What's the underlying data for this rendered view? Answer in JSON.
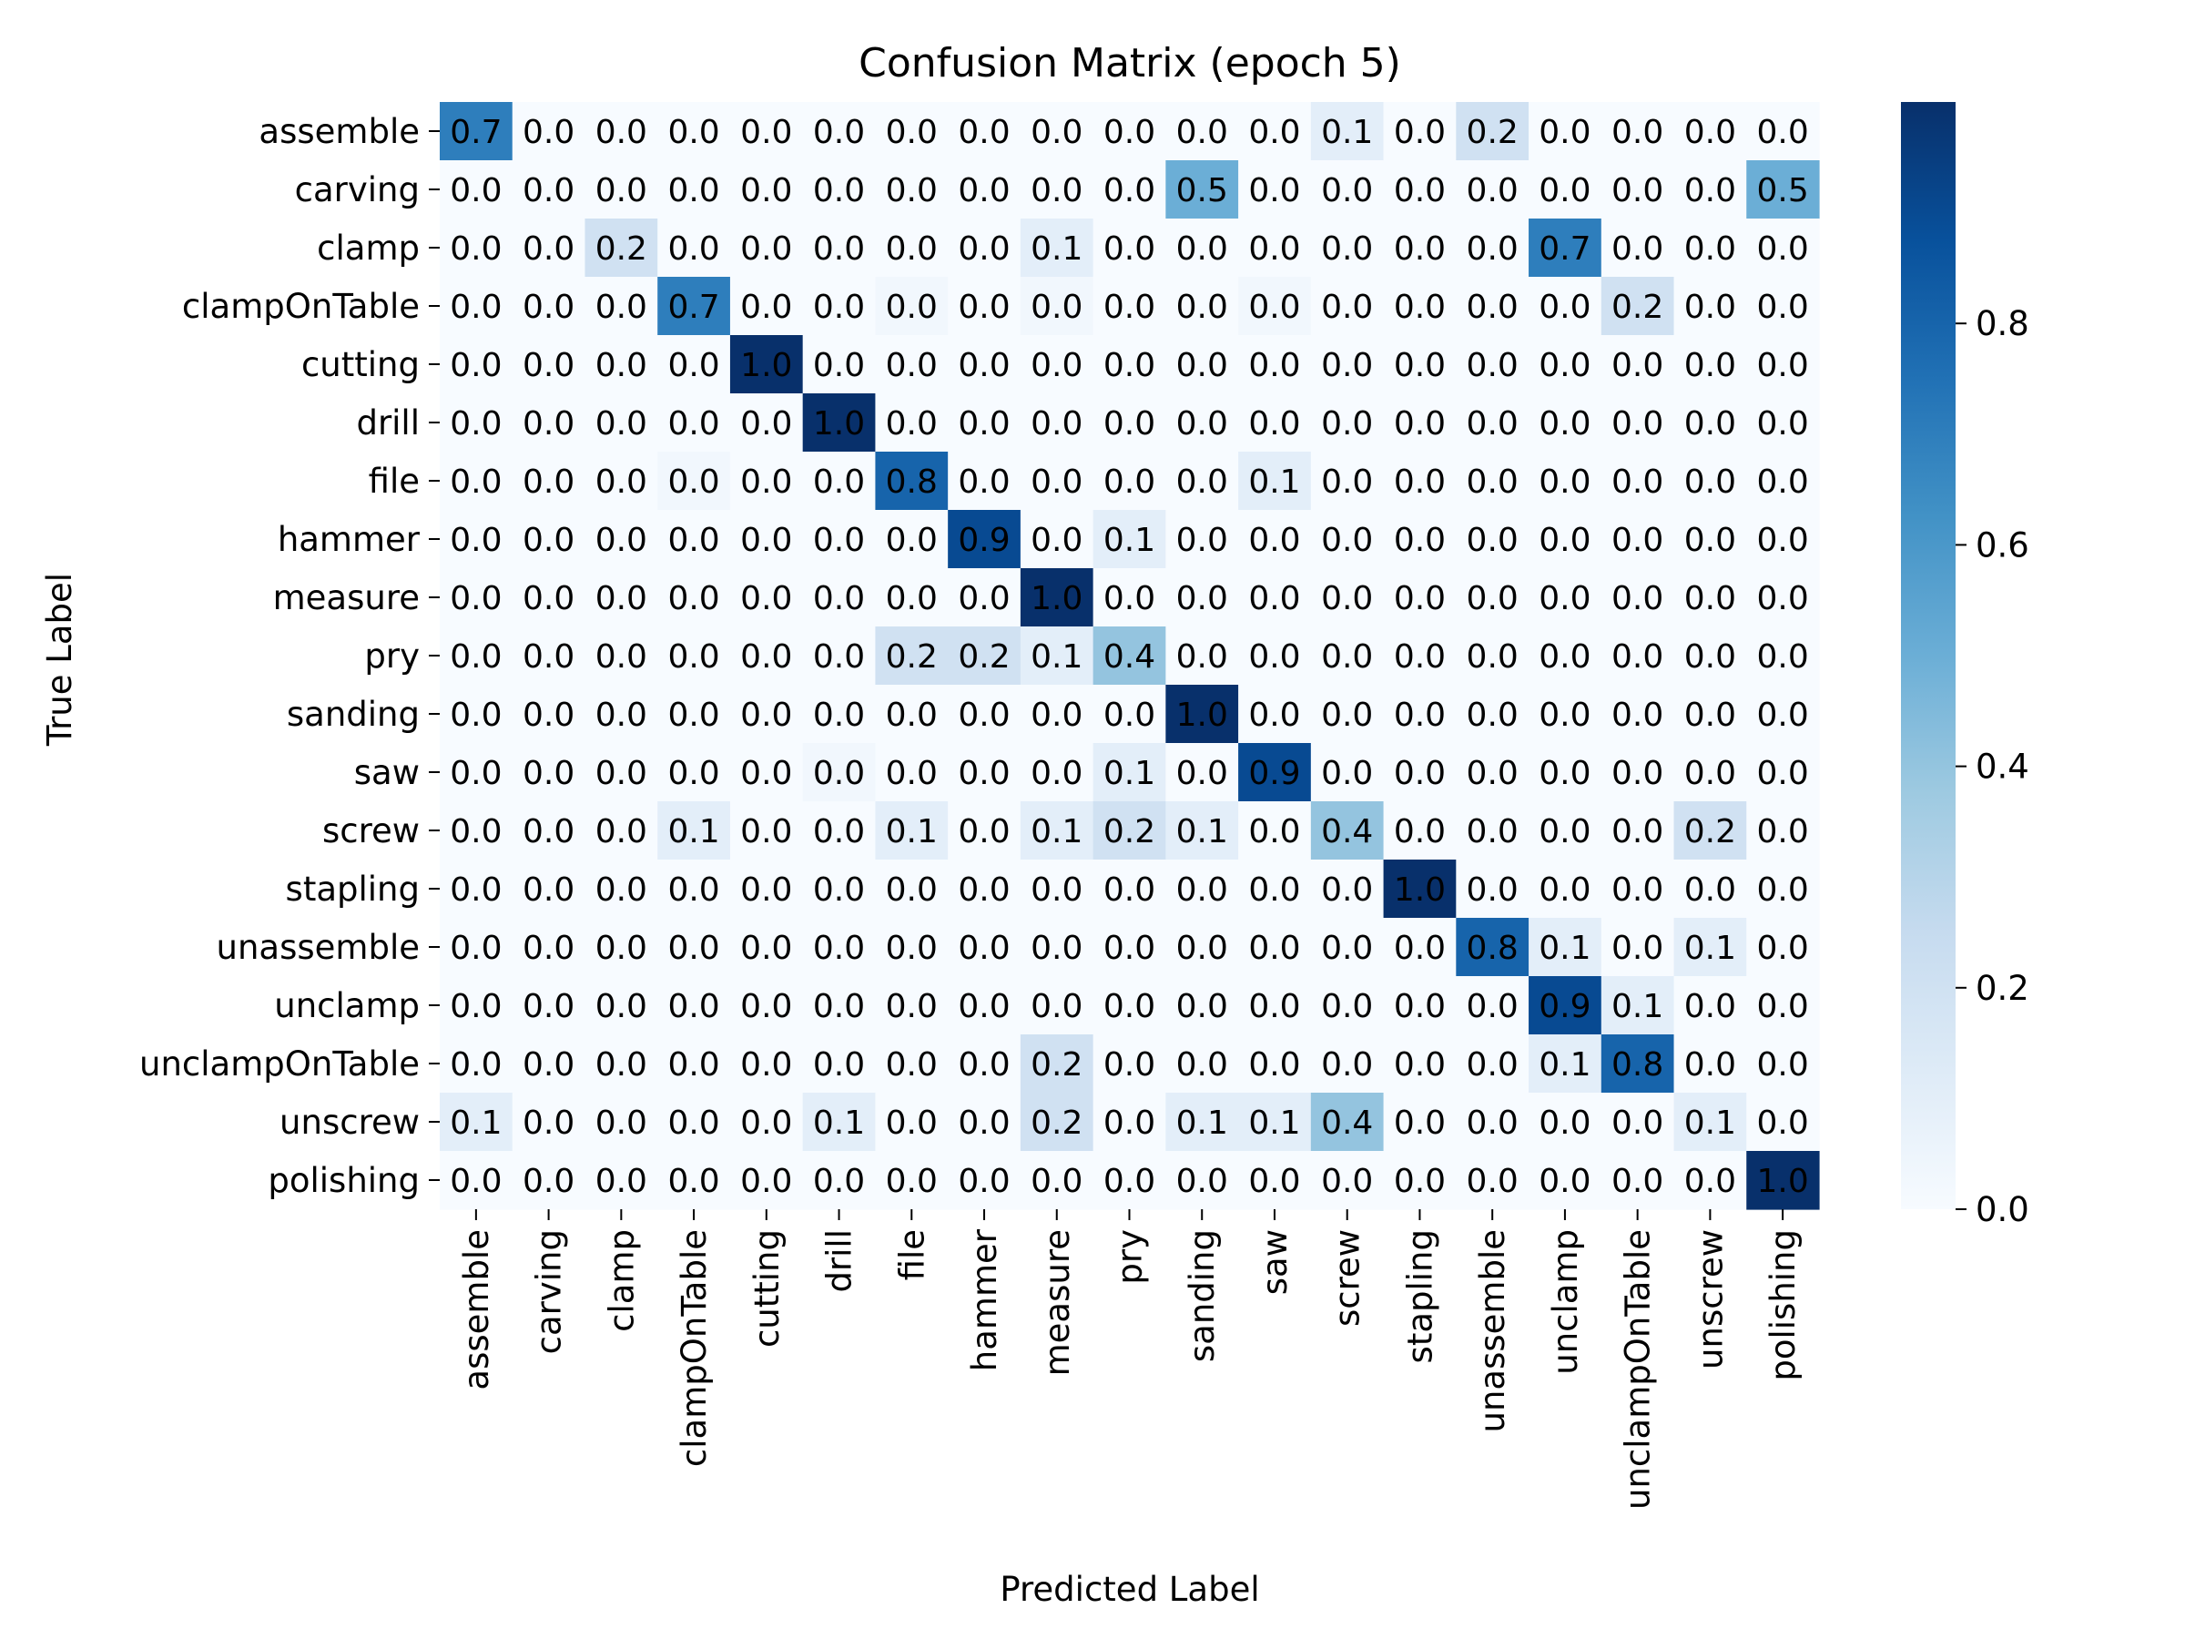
{
  "chart_data": {
    "type": "heatmap",
    "title": "Confusion Matrix (epoch 5)",
    "xlabel": "Predicted Label",
    "ylabel": "True Label",
    "x_categories": [
      "assemble",
      "carving",
      "clamp",
      "clampOnTable",
      "cutting",
      "drill",
      "file",
      "hammer",
      "measure",
      "pry",
      "sanding",
      "saw",
      "screw",
      "stapling",
      "unassemble",
      "unclamp",
      "unclampOnTable",
      "unscrew",
      "polishing"
    ],
    "y_categories": [
      "assemble",
      "carving",
      "clamp",
      "clampOnTable",
      "cutting",
      "drill",
      "file",
      "hammer",
      "measure",
      "pry",
      "sanding",
      "saw",
      "screw",
      "stapling",
      "unassemble",
      "unclamp",
      "unclampOnTable",
      "unscrew",
      "polishing"
    ],
    "values": [
      [
        0.7,
        0.0,
        0.0,
        0.0,
        0.0,
        0.0,
        0.0,
        0.0,
        0.0,
        0.0,
        0.0,
        0.0,
        0.1,
        0.0,
        0.2,
        0.0,
        0.0,
        0.0,
        0.0
      ],
      [
        0.0,
        0.0,
        0.0,
        0.0,
        0.0,
        0.0,
        0.0,
        0.0,
        0.0,
        0.0,
        0.5,
        0.0,
        0.0,
        0.0,
        0.0,
        0.0,
        0.0,
        0.0,
        0.5
      ],
      [
        0.0,
        0.0,
        0.2,
        0.0,
        0.0,
        0.0,
        0.0,
        0.0,
        0.1,
        0.0,
        0.0,
        0.0,
        0.0,
        0.0,
        0.0,
        0.7,
        0.0,
        0.0,
        0.0
      ],
      [
        0.0,
        0.0,
        0.0,
        0.7,
        0.0,
        0.0,
        0.03,
        0.0,
        0.03,
        0.0,
        0.0,
        0.03,
        0.0,
        0.0,
        0.0,
        0.0,
        0.2,
        0.0,
        0.0
      ],
      [
        0.0,
        0.0,
        0.0,
        0.0,
        1.0,
        0.0,
        0.0,
        0.0,
        0.0,
        0.0,
        0.0,
        0.0,
        0.0,
        0.0,
        0.0,
        0.0,
        0.0,
        0.0,
        0.0
      ],
      [
        0.0,
        0.0,
        0.0,
        0.0,
        0.0,
        1.0,
        0.0,
        0.0,
        0.0,
        0.0,
        0.0,
        0.0,
        0.0,
        0.0,
        0.0,
        0.0,
        0.0,
        0.0,
        0.0
      ],
      [
        0.0,
        0.0,
        0.0,
        0.03,
        0.0,
        0.0,
        0.8,
        0.0,
        0.0,
        0.0,
        0.0,
        0.1,
        0.0,
        0.0,
        0.0,
        0.0,
        0.0,
        0.0,
        0.0
      ],
      [
        0.0,
        0.0,
        0.0,
        0.0,
        0.0,
        0.0,
        0.0,
        0.9,
        0.0,
        0.1,
        0.0,
        0.0,
        0.0,
        0.0,
        0.0,
        0.0,
        0.0,
        0.0,
        0.0
      ],
      [
        0.0,
        0.0,
        0.0,
        0.0,
        0.0,
        0.0,
        0.0,
        0.0,
        1.0,
        0.0,
        0.0,
        0.0,
        0.0,
        0.0,
        0.0,
        0.0,
        0.0,
        0.0,
        0.0
      ],
      [
        0.0,
        0.0,
        0.0,
        0.0,
        0.0,
        0.0,
        0.2,
        0.2,
        0.1,
        0.4,
        0.0,
        0.0,
        0.0,
        0.0,
        0.0,
        0.0,
        0.0,
        0.0,
        0.0
      ],
      [
        0.0,
        0.0,
        0.0,
        0.0,
        0.0,
        0.0,
        0.0,
        0.0,
        0.0,
        0.0,
        1.0,
        0.0,
        0.0,
        0.0,
        0.0,
        0.0,
        0.0,
        0.0,
        0.0
      ],
      [
        0.0,
        0.0,
        0.0,
        0.0,
        0.0,
        0.03,
        0.0,
        0.0,
        0.0,
        0.1,
        0.0,
        0.9,
        0.0,
        0.0,
        0.0,
        0.0,
        0.0,
        0.0,
        0.0
      ],
      [
        0.0,
        0.0,
        0.0,
        0.1,
        0.0,
        0.0,
        0.1,
        0.0,
        0.1,
        0.2,
        0.1,
        0.0,
        0.4,
        0.0,
        0.0,
        0.0,
        0.0,
        0.2,
        0.0
      ],
      [
        0.0,
        0.0,
        0.0,
        0.0,
        0.0,
        0.0,
        0.0,
        0.0,
        0.0,
        0.0,
        0.0,
        0.0,
        0.0,
        1.0,
        0.0,
        0.0,
        0.0,
        0.0,
        0.0
      ],
      [
        0.0,
        0.0,
        0.0,
        0.0,
        0.0,
        0.0,
        0.0,
        0.0,
        0.0,
        0.0,
        0.0,
        0.0,
        0.0,
        0.0,
        0.8,
        0.1,
        0.0,
        0.1,
        0.0
      ],
      [
        0.0,
        0.0,
        0.0,
        0.0,
        0.0,
        0.0,
        0.0,
        0.0,
        0.0,
        0.0,
        0.0,
        0.0,
        0.0,
        0.0,
        0.0,
        0.9,
        0.1,
        0.0,
        0.0
      ],
      [
        0.0,
        0.0,
        0.0,
        0.0,
        0.0,
        0.0,
        0.0,
        0.0,
        0.2,
        0.0,
        0.0,
        0.0,
        0.0,
        0.0,
        0.0,
        0.1,
        0.8,
        0.0,
        0.0
      ],
      [
        0.1,
        0.0,
        0.0,
        0.0,
        0.0,
        0.1,
        0.0,
        0.0,
        0.2,
        0.0,
        0.1,
        0.1,
        0.4,
        0.0,
        0.0,
        0.0,
        0.0,
        0.1,
        0.0
      ],
      [
        0.0,
        0.0,
        0.0,
        0.0,
        0.0,
        0.0,
        0.0,
        0.0,
        0.0,
        0.0,
        0.0,
        0.0,
        0.0,
        0.0,
        0.0,
        0.0,
        0.0,
        0.0,
        1.0
      ]
    ],
    "labels": [
      [
        "0.7",
        "0.0",
        "0.0",
        "0.0",
        "0.0",
        "0.0",
        "0.0",
        "0.0",
        "0.0",
        "0.0",
        "0.0",
        "0.0",
        "0.1",
        "0.0",
        "0.2",
        "0.0",
        "0.0",
        "0.0",
        "0.0"
      ],
      [
        "0.0",
        "0.0",
        "0.0",
        "0.0",
        "0.0",
        "0.0",
        "0.0",
        "0.0",
        "0.0",
        "0.0",
        "0.5",
        "0.0",
        "0.0",
        "0.0",
        "0.0",
        "0.0",
        "0.0",
        "0.0",
        "0.5"
      ],
      [
        "0.0",
        "0.0",
        "0.2",
        "0.0",
        "0.0",
        "0.0",
        "0.0",
        "0.0",
        "0.1",
        "0.0",
        "0.0",
        "0.0",
        "0.0",
        "0.0",
        "0.0",
        "0.7",
        "0.0",
        "0.0",
        "0.0"
      ],
      [
        "0.0",
        "0.0",
        "0.0",
        "0.7",
        "0.0",
        "0.0",
        "0.0",
        "0.0",
        "0.0",
        "0.0",
        "0.0",
        "0.0",
        "0.0",
        "0.0",
        "0.0",
        "0.0",
        "0.2",
        "0.0",
        "0.0"
      ],
      [
        "0.0",
        "0.0",
        "0.0",
        "0.0",
        "1.0",
        "0.0",
        "0.0",
        "0.0",
        "0.0",
        "0.0",
        "0.0",
        "0.0",
        "0.0",
        "0.0",
        "0.0",
        "0.0",
        "0.0",
        "0.0",
        "0.0"
      ],
      [
        "0.0",
        "0.0",
        "0.0",
        "0.0",
        "0.0",
        "1.0",
        "0.0",
        "0.0",
        "0.0",
        "0.0",
        "0.0",
        "0.0",
        "0.0",
        "0.0",
        "0.0",
        "0.0",
        "0.0",
        "0.0",
        "0.0"
      ],
      [
        "0.0",
        "0.0",
        "0.0",
        "0.0",
        "0.0",
        "0.0",
        "0.8",
        "0.0",
        "0.0",
        "0.0",
        "0.0",
        "0.1",
        "0.0",
        "0.0",
        "0.0",
        "0.0",
        "0.0",
        "0.0",
        "0.0"
      ],
      [
        "0.0",
        "0.0",
        "0.0",
        "0.0",
        "0.0",
        "0.0",
        "0.0",
        "0.9",
        "0.0",
        "0.1",
        "0.0",
        "0.0",
        "0.0",
        "0.0",
        "0.0",
        "0.0",
        "0.0",
        "0.0",
        "0.0"
      ],
      [
        "0.0",
        "0.0",
        "0.0",
        "0.0",
        "0.0",
        "0.0",
        "0.0",
        "0.0",
        "1.0",
        "0.0",
        "0.0",
        "0.0",
        "0.0",
        "0.0",
        "0.0",
        "0.0",
        "0.0",
        "0.0",
        "0.0"
      ],
      [
        "0.0",
        "0.0",
        "0.0",
        "0.0",
        "0.0",
        "0.0",
        "0.2",
        "0.2",
        "0.1",
        "0.4",
        "0.0",
        "0.0",
        "0.0",
        "0.0",
        "0.0",
        "0.0",
        "0.0",
        "0.0",
        "0.0"
      ],
      [
        "0.0",
        "0.0",
        "0.0",
        "0.0",
        "0.0",
        "0.0",
        "0.0",
        "0.0",
        "0.0",
        "0.0",
        "1.0",
        "0.0",
        "0.0",
        "0.0",
        "0.0",
        "0.0",
        "0.0",
        "0.0",
        "0.0"
      ],
      [
        "0.0",
        "0.0",
        "0.0",
        "0.0",
        "0.0",
        "0.0",
        "0.0",
        "0.0",
        "0.0",
        "0.1",
        "0.0",
        "0.9",
        "0.0",
        "0.0",
        "0.0",
        "0.0",
        "0.0",
        "0.0",
        "0.0"
      ],
      [
        "0.0",
        "0.0",
        "0.0",
        "0.1",
        "0.0",
        "0.0",
        "0.1",
        "0.0",
        "0.1",
        "0.2",
        "0.1",
        "0.0",
        "0.4",
        "0.0",
        "0.0",
        "0.0",
        "0.0",
        "0.2",
        "0.0"
      ],
      [
        "0.0",
        "0.0",
        "0.0",
        "0.0",
        "0.0",
        "0.0",
        "0.0",
        "0.0",
        "0.0",
        "0.0",
        "0.0",
        "0.0",
        "0.0",
        "1.0",
        "0.0",
        "0.0",
        "0.0",
        "0.0",
        "0.0"
      ],
      [
        "0.0",
        "0.0",
        "0.0",
        "0.0",
        "0.0",
        "0.0",
        "0.0",
        "0.0",
        "0.0",
        "0.0",
        "0.0",
        "0.0",
        "0.0",
        "0.0",
        "0.8",
        "0.1",
        "0.0",
        "0.1",
        "0.0"
      ],
      [
        "0.0",
        "0.0",
        "0.0",
        "0.0",
        "0.0",
        "0.0",
        "0.0",
        "0.0",
        "0.0",
        "0.0",
        "0.0",
        "0.0",
        "0.0",
        "0.0",
        "0.0",
        "0.9",
        "0.1",
        "0.0",
        "0.0"
      ],
      [
        "0.0",
        "0.0",
        "0.0",
        "0.0",
        "0.0",
        "0.0",
        "0.0",
        "0.0",
        "0.2",
        "0.0",
        "0.0",
        "0.0",
        "0.0",
        "0.0",
        "0.0",
        "0.1",
        "0.8",
        "0.0",
        "0.0"
      ],
      [
        "0.1",
        "0.0",
        "0.0",
        "0.0",
        "0.0",
        "0.1",
        "0.0",
        "0.0",
        "0.2",
        "0.0",
        "0.1",
        "0.1",
        "0.4",
        "0.0",
        "0.0",
        "0.0",
        "0.0",
        "0.1",
        "0.0"
      ],
      [
        "0.0",
        "0.0",
        "0.0",
        "0.0",
        "0.0",
        "0.0",
        "0.0",
        "0.0",
        "0.0",
        "0.0",
        "0.0",
        "0.0",
        "0.0",
        "0.0",
        "0.0",
        "0.0",
        "0.0",
        "0.0",
        "1.0"
      ]
    ],
    "colorbar": {
      "colormap": "Blues",
      "range": [
        0,
        1
      ],
      "ticks": [
        0.0,
        0.2,
        0.4,
        0.6,
        0.8
      ],
      "tick_labels": [
        "0.0",
        "0.2",
        "0.4",
        "0.6",
        "0.8"
      ]
    },
    "legend": "colorbar-right",
    "grid": false
  }
}
